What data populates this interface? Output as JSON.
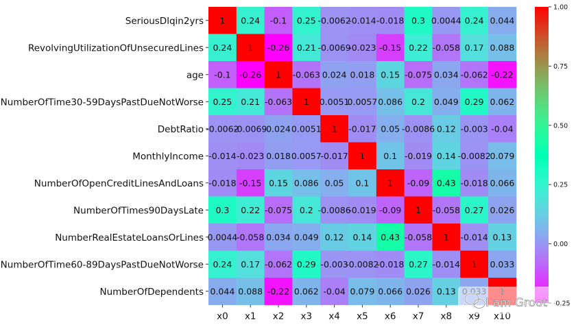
{
  "chart_data": {
    "type": "heatmap",
    "title": "",
    "xlabel": "",
    "ylabel": "",
    "row_labels": [
      "SeriousDlqin2yrs",
      "RevolvingUtilizationOfUnsecuredLines",
      "age",
      "NumberOfTime30-59DaysPastDueNotWorse",
      "DebtRatio",
      "MonthlyIncome",
      "NumberOfOpenCreditLinesAndLoans",
      "NumberOfTimes90DaysLate",
      "NumberRealEstateLoansOrLines",
      "NumberOfTime60-89DaysPastDueNotWorse",
      "NumberOfDependents"
    ],
    "col_labels": [
      "x0",
      "x1",
      "x2",
      "x3",
      "x4",
      "x5",
      "x6",
      "x7",
      "x8",
      "x9",
      "x10"
    ],
    "values": [
      [
        1,
        0.24,
        -0.1,
        0.25,
        -0.0062,
        -0.014,
        -0.018,
        0.3,
        0.0044,
        0.24,
        0.044
      ],
      [
        0.24,
        1,
        -0.26,
        0.21,
        -0.0069,
        -0.023,
        -0.15,
        0.22,
        -0.058,
        0.17,
        0.088
      ],
      [
        -0.1,
        -0.26,
        1,
        -0.063,
        0.024,
        0.018,
        0.15,
        -0.075,
        0.034,
        -0.062,
        -0.22
      ],
      [
        0.25,
        0.21,
        -0.063,
        1,
        0.0051,
        0.0057,
        0.086,
        0.2,
        0.049,
        0.29,
        0.062
      ],
      [
        -0.0062,
        -0.0069,
        0.024,
        0.0051,
        1,
        -0.017,
        0.05,
        -0.0086,
        0.12,
        -0.003,
        -0.04
      ],
      [
        -0.014,
        -0.023,
        0.018,
        0.0057,
        -0.017,
        1,
        0.1,
        -0.019,
        0.14,
        -0.0082,
        0.079
      ],
      [
        -0.018,
        -0.15,
        0.15,
        0.086,
        0.05,
        0.1,
        1,
        -0.09,
        0.43,
        -0.018,
        0.066
      ],
      [
        0.3,
        0.22,
        -0.075,
        0.2,
        -0.0086,
        -0.019,
        -0.09,
        1,
        -0.058,
        0.27,
        0.026
      ],
      [
        0.0044,
        -0.058,
        0.034,
        0.049,
        0.12,
        0.14,
        0.43,
        -0.058,
        1,
        -0.014,
        0.13
      ],
      [
        0.24,
        0.17,
        -0.062,
        0.29,
        -0.003,
        -0.0082,
        -0.018,
        0.27,
        -0.014,
        1,
        0.033
      ],
      [
        0.044,
        0.088,
        -0.22,
        0.062,
        -0.04,
        0.079,
        0.066,
        0.026,
        0.13,
        0.033,
        1
      ]
    ],
    "vmin": -0.25,
    "vmax": 1.0,
    "colormap": "rainbow",
    "colorbar_ticks": [
      1.0,
      0.75,
      0.5,
      0.25,
      0.0,
      -0.25
    ],
    "colorbar_tick_labels": [
      "1.00",
      "0.75",
      "0.50",
      "0.25",
      "0.00",
      "-0.25"
    ]
  },
  "watermark": {
    "text": "I am Groot"
  }
}
